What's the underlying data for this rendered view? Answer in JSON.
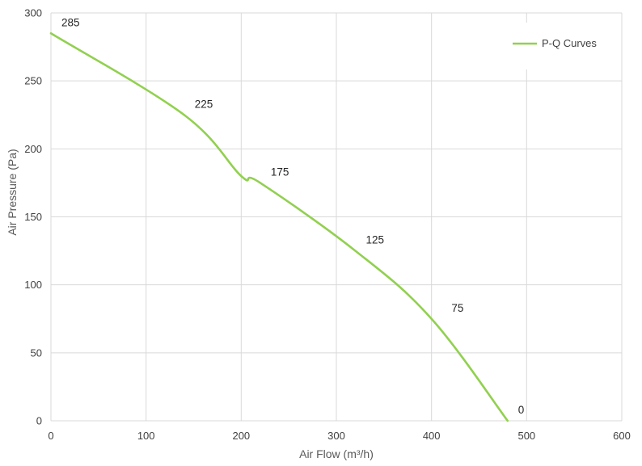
{
  "chart_data": {
    "type": "line",
    "xlabel": "Air Flow  (m³/h)",
    "ylabel": "Air Pressure  (Pa)",
    "xlim": [
      0,
      600
    ],
    "ylim": [
      0,
      300
    ],
    "x_ticks": [
      "0",
      "100",
      "200",
      "300",
      "400",
      "500",
      "600"
    ],
    "y_ticks": [
      "0",
      "50",
      "100",
      "150",
      "200",
      "250",
      "300"
    ],
    "grid": true,
    "legend_position": "top-right",
    "series": [
      {
        "name": "P-Q Curves",
        "color": "#92d050",
        "x": [
          0,
          140,
          200,
          220,
          320,
          400,
          480
        ],
        "y": [
          285,
          225,
          180,
          175,
          125,
          75,
          0
        ]
      }
    ],
    "data_labels": [
      {
        "x": 0,
        "y": 285,
        "text": "285"
      },
      {
        "x": 140,
        "y": 225,
        "text": "225"
      },
      {
        "x": 220,
        "y": 175,
        "text": "175"
      },
      {
        "x": 320,
        "y": 125,
        "text": "125"
      },
      {
        "x": 410,
        "y": 75,
        "text": "75"
      },
      {
        "x": 480,
        "y": 0,
        "text": "0"
      }
    ]
  }
}
